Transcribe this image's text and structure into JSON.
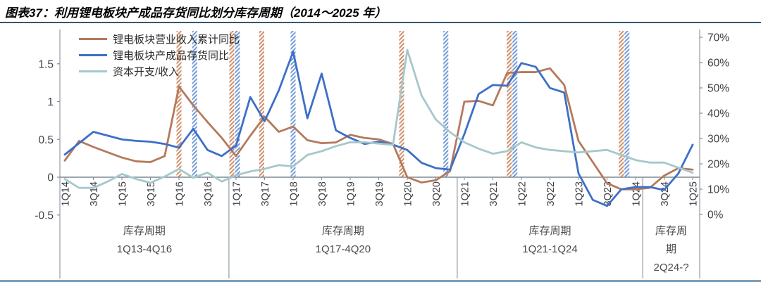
{
  "title": "图表37：利用锂电板块产成品存货同比划分库存周期（2014～2025 年）",
  "legend": [
    {
      "label": "锂电板块营业收入累计同比",
      "color": "#B5795B"
    },
    {
      "label": "锂电板块产成品存货同比",
      "color": "#3E6FC8"
    },
    {
      "label": "资本开支/收入",
      "color": "#A5C8CB"
    }
  ],
  "cycles": [
    {
      "name": "库存周期",
      "range": "1Q13-4Q16",
      "start_q": "1Q14"
    },
    {
      "name": "库存周期",
      "range": "1Q17-4Q20",
      "start_q": "1Q17"
    },
    {
      "name": "库存周期",
      "range": "1Q21-1Q24",
      "start_q": "1Q21"
    },
    {
      "name": "库存周期",
      "range": "2Q24-?",
      "start_q": "2Q24"
    }
  ],
  "chart_data": {
    "type": "line",
    "x": [
      "1Q14",
      "2Q14",
      "3Q14",
      "4Q14",
      "1Q15",
      "2Q15",
      "3Q15",
      "4Q15",
      "1Q16",
      "2Q16",
      "3Q16",
      "4Q16",
      "1Q17",
      "2Q17",
      "3Q17",
      "4Q17",
      "1Q18",
      "2Q18",
      "3Q18",
      "4Q18",
      "1Q19",
      "2Q19",
      "3Q19",
      "4Q19",
      "1Q20",
      "2Q20",
      "3Q20",
      "4Q20",
      "1Q21",
      "2Q21",
      "3Q21",
      "4Q21",
      "1Q22",
      "2Q22",
      "3Q22",
      "4Q22",
      "1Q23",
      "2Q23",
      "3Q23",
      "4Q23",
      "1Q24",
      "2Q24",
      "3Q24",
      "4Q24",
      "1Q25"
    ],
    "x_tick_every": 2,
    "left_axis": {
      "min": -0.5,
      "max": 1.5,
      "ticks": [
        -0.5,
        0,
        0.5,
        1,
        1.5
      ]
    },
    "right_axis": {
      "min": 0,
      "max": 70,
      "ticks": [
        0,
        10,
        20,
        30,
        40,
        50,
        60,
        70
      ],
      "suffix": "%"
    },
    "grid": "off",
    "legend_position": "top-left-inside",
    "series": [
      {
        "id": "revenue-cumulative-yoy",
        "name": "锂电板块营业收入累计同比",
        "axis": "left",
        "color": "#B5795B",
        "values": [
          0.22,
          0.48,
          0.4,
          0.33,
          0.26,
          0.21,
          0.2,
          0.28,
          1.2,
          0.95,
          0.73,
          0.52,
          0.28,
          0.55,
          0.8,
          0.6,
          0.67,
          0.49,
          0.45,
          0.46,
          0.56,
          0.52,
          0.5,
          0.44,
          0.0,
          -0.07,
          -0.04,
          0.08,
          1.0,
          1.01,
          0.95,
          1.38,
          1.39,
          1.39,
          1.44,
          1.22,
          0.48,
          0.2,
          -0.08,
          -0.16,
          -0.16,
          -0.14,
          0.02,
          0.12,
          0.1
        ]
      },
      {
        "id": "finished-goods-inventory-yoy",
        "name": "锂电板块产成品存货同比",
        "axis": "left",
        "color": "#3E6FC8",
        "values": [
          0.3,
          0.45,
          0.6,
          0.55,
          0.5,
          0.48,
          0.47,
          0.44,
          0.39,
          0.64,
          0.36,
          0.28,
          0.42,
          1.06,
          0.74,
          1.15,
          1.66,
          0.78,
          1.37,
          0.62,
          0.52,
          0.44,
          0.47,
          0.43,
          0.36,
          0.19,
          0.12,
          0.1,
          0.57,
          1.1,
          1.22,
          1.21,
          1.51,
          1.46,
          1.18,
          1.12,
          0.05,
          -0.3,
          -0.38,
          -0.16,
          -0.13,
          -0.13,
          -0.17,
          0.05,
          0.43
        ]
      },
      {
        "id": "capex-to-revenue",
        "name": "资本开支/收入",
        "axis": "right",
        "color": "#A5C8CB",
        "unit": "%",
        "values": [
          14,
          10.5,
          10.5,
          13,
          16,
          14,
          12.5,
          15,
          18,
          14.5,
          16.5,
          13,
          15.5,
          17,
          18,
          19.5,
          19,
          23.5,
          25,
          27,
          28.5,
          28.5,
          28,
          27.5,
          65,
          47,
          37.5,
          32.5,
          28.5,
          26,
          24,
          25,
          28.5,
          26.5,
          25.5,
          25,
          24.5,
          25,
          25.5,
          23.5,
          21.5,
          20.5,
          20.5,
          18.5,
          16.5
        ]
      }
    ],
    "band_colors": {
      "revenue": "#CE8A64",
      "inventory": "#6E97D6"
    },
    "turning_point_bands": [
      {
        "q": "1Q16",
        "t": "revenue",
        "dx": 0
      },
      {
        "q": "2Q16",
        "t": "inventory",
        "dx": 2
      },
      {
        "q": "1Q17",
        "t": "revenue",
        "dx": -6
      },
      {
        "q": "1Q17",
        "t": "inventory",
        "dx": 2
      },
      {
        "q": "3Q17",
        "t": "revenue",
        "dx": -4
      },
      {
        "q": "1Q18",
        "t": "inventory",
        "dx": 0
      },
      {
        "q": "1Q20",
        "t": "revenue",
        "dx": -8
      },
      {
        "q": "4Q20",
        "t": "inventory",
        "dx": -6
      },
      {
        "q": "4Q21",
        "t": "revenue",
        "dx": 3
      },
      {
        "q": "4Q21",
        "t": "inventory",
        "dx": 11
      },
      {
        "q": "4Q23",
        "t": "revenue",
        "dx": 0
      },
      {
        "q": "4Q23",
        "t": "inventory",
        "dx": 8
      }
    ]
  }
}
